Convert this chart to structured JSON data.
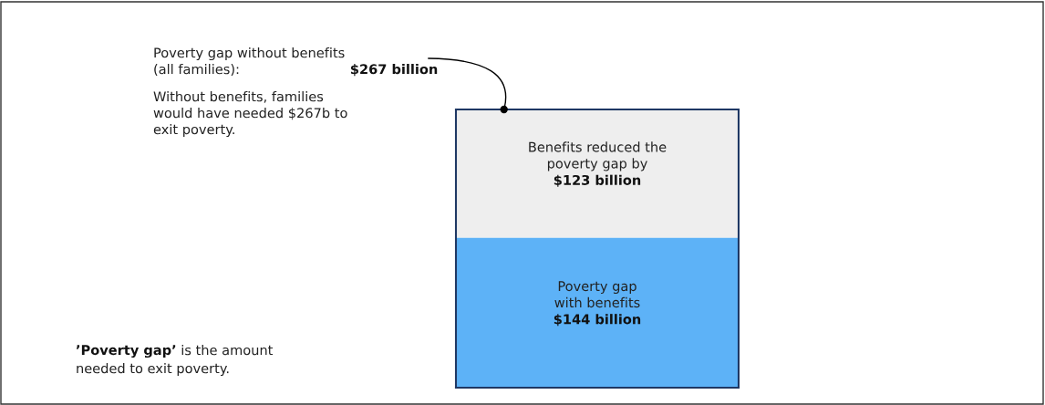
{
  "chart_data": {
    "type": "bar",
    "stacked": true,
    "categories": [
      null
    ],
    "series": [
      {
        "name": "Poverty gap\nwith benefits",
        "color": "#5db2f7",
        "values": [
          144
        ],
        "value_labels": [
          "$144 billion"
        ]
      },
      {
        "name": "Benefits reduced the\npoverty gap by",
        "color": "#eeeeee",
        "values": [
          123
        ],
        "value_labels": [
          "$123 billion"
        ]
      }
    ],
    "annotations": [
      "Poverty gap without benefits\n(all families):",
      "$267 billion",
      "Without benefits, families\nwould have needed $267b to\nexit poverty.",
      "’Poverty gap’",
      " is the amount",
      "needed to exit poverty."
    ]
  }
}
